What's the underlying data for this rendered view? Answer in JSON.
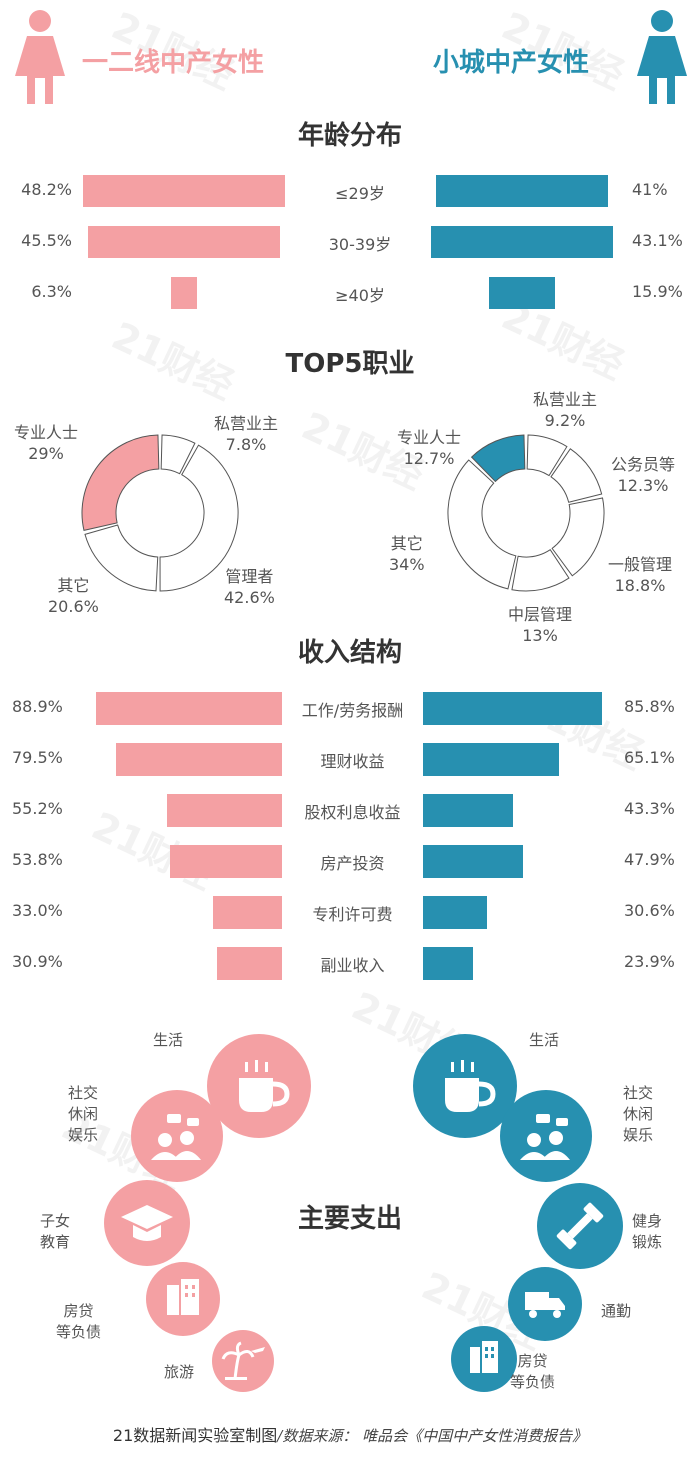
{
  "header": {
    "left_label": "一二线中产女性",
    "right_label": "小城中产女性",
    "left_color": "#f4a0a3",
    "right_color": "#2790b0",
    "left_icon": "woman-icon",
    "right_icon": "woman-icon"
  },
  "age": {
    "title": "年龄分布",
    "categories": [
      "≤29岁",
      "30-39岁",
      "≥40岁"
    ],
    "left_labels": [
      "48.2%",
      "45.5%",
      "6.3%"
    ],
    "right_labels": [
      "41%",
      "43.1%",
      "15.9%"
    ]
  },
  "jobs": {
    "title": "TOP5职业",
    "left": [
      {
        "name": "专业人士",
        "pct": "29%"
      },
      {
        "name": "私营业主",
        "pct": "7.8%"
      },
      {
        "name": "管理者",
        "pct": "42.6%"
      },
      {
        "name": "其它",
        "pct": "20.6%"
      }
    ],
    "right": [
      {
        "name": "专业人士",
        "pct": "12.7%"
      },
      {
        "name": "私营业主",
        "pct": "9.2%"
      },
      {
        "name": "公务员等",
        "pct": "12.3%"
      },
      {
        "name": "一般管理",
        "pct": "18.8%"
      },
      {
        "name": "中层管理",
        "pct": "13%"
      },
      {
        "name": "其它",
        "pct": "34%"
      }
    ]
  },
  "income": {
    "title": "收入结构",
    "categories": [
      "工作/劳务报酬",
      "理财收益",
      "股权利息收益",
      "房产投资",
      "专利许可费",
      "副业收入"
    ],
    "left_labels": [
      "88.9%",
      "79.5%",
      "55.2%",
      "53.8%",
      "33.0%",
      "30.9%"
    ],
    "right_labels": [
      "85.8%",
      "65.1%",
      "43.3%",
      "47.9%",
      "30.6%",
      "23.9%"
    ]
  },
  "spending": {
    "title": "主要支出",
    "left": [
      {
        "label": "生活",
        "icon": "coffee-cup-icon"
      },
      {
        "label": "社交\n休闲\n娱乐",
        "icon": "people-chat-icon"
      },
      {
        "label": "子女\n教育",
        "icon": "graduation-cap-icon"
      },
      {
        "label": "房贷\n等负债",
        "icon": "buildings-icon"
      },
      {
        "label": "旅游",
        "icon": "palm-plane-icon"
      }
    ],
    "right": [
      {
        "label": "生活",
        "icon": "coffee-cup-icon"
      },
      {
        "label": "社交\n休闲\n娱乐",
        "icon": "people-chat-icon"
      },
      {
        "label": "健身\n锻炼",
        "icon": "dumbbell-icon"
      },
      {
        "label": "通勤",
        "icon": "truck-icon"
      },
      {
        "label": "房贷\n等负债",
        "icon": "buildings-icon"
      }
    ]
  },
  "footer": {
    "credit": "21数据新闻实验室制图",
    "source": "/数据来源： 唯品会《中国中产女性消费报告》"
  },
  "watermark": "21财经",
  "chart_data": [
    {
      "type": "bar",
      "title": "年龄分布",
      "categories": [
        "≤29岁",
        "30-39岁",
        "≥40岁"
      ],
      "series": [
        {
          "name": "一二线中产女性",
          "values": [
            48.2,
            45.5,
            6.3
          ]
        },
        {
          "name": "小城中产女性",
          "values": [
            41,
            43.1,
            15.9
          ]
        }
      ]
    },
    {
      "type": "pie",
      "title": "TOP5职业",
      "name": "一二线中产女性",
      "categories": [
        "专业人士",
        "私营业主",
        "管理者",
        "其它"
      ],
      "values": [
        29,
        7.8,
        42.6,
        20.6
      ],
      "highlight": "专业人士"
    },
    {
      "type": "pie",
      "title": "TOP5职业",
      "name": "小城中产女性",
      "categories": [
        "专业人士",
        "私营业主",
        "公务员等",
        "一般管理",
        "中层管理",
        "其它"
      ],
      "values": [
        12.7,
        9.2,
        12.3,
        18.8,
        13,
        34
      ],
      "highlight": "专业人士"
    },
    {
      "type": "bar",
      "title": "收入结构",
      "categories": [
        "工作/劳务报酬",
        "理财收益",
        "股权利息收益",
        "房产投资",
        "专利许可费",
        "副业收入"
      ],
      "series": [
        {
          "name": "一二线中产女性",
          "values": [
            88.9,
            79.5,
            55.2,
            53.8,
            33.0,
            30.9
          ]
        },
        {
          "name": "小城中产女性",
          "values": [
            85.8,
            65.1,
            43.3,
            47.9,
            30.6,
            23.9
          ]
        }
      ]
    }
  ]
}
